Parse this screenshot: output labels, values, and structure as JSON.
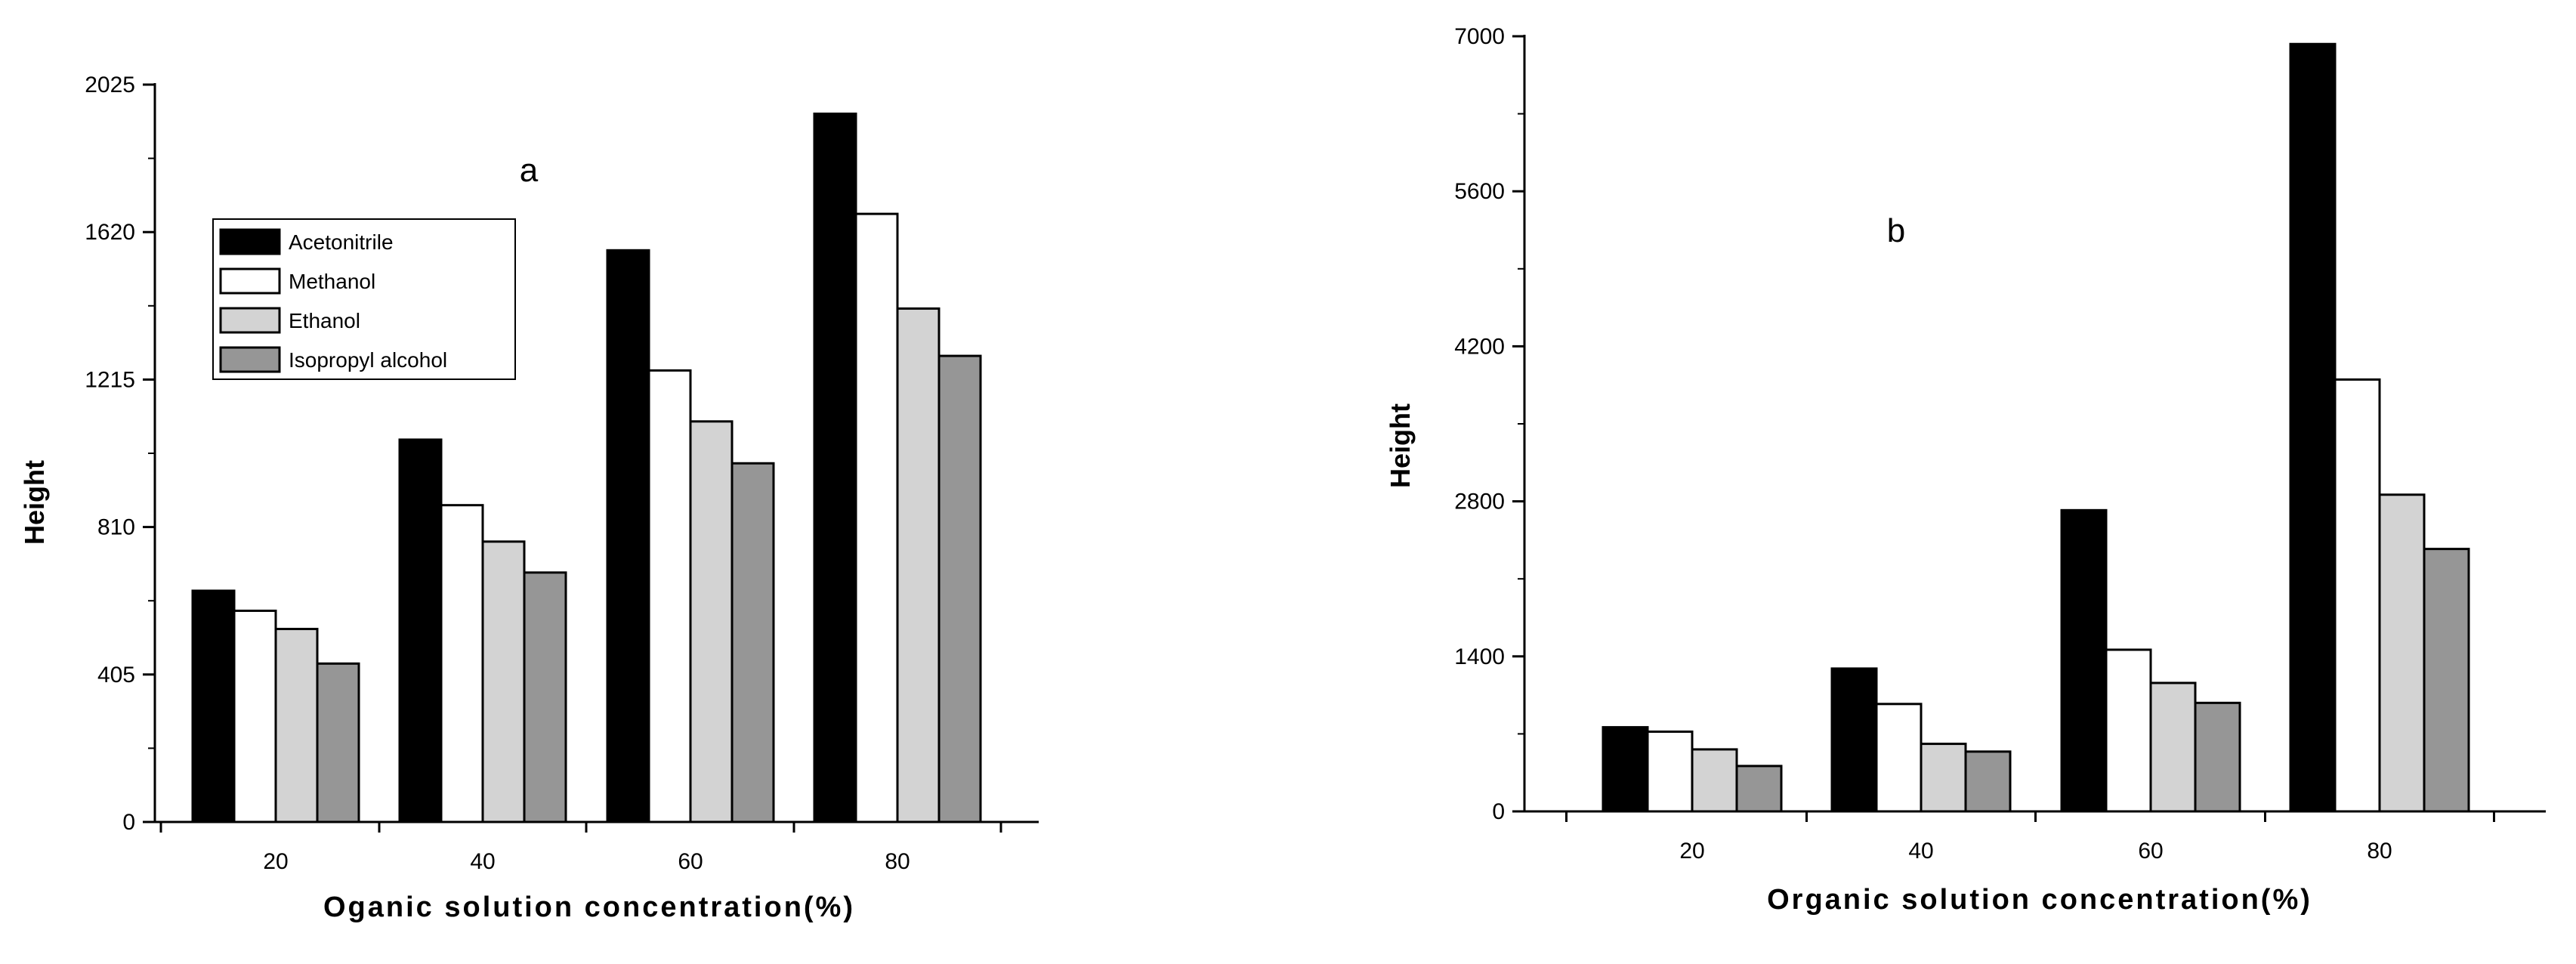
{
  "chart_data": [
    {
      "type": "bar",
      "panel_label": "a",
      "categories": [
        "20",
        "40",
        "60",
        "80"
      ],
      "series": [
        {
          "name": "Acetonitrile",
          "values": [
            635,
            1050,
            1570,
            1945
          ]
        },
        {
          "name": "Methanol",
          "values": [
            580,
            870,
            1240,
            1670
          ]
        },
        {
          "name": "Ethanol",
          "values": [
            530,
            770,
            1100,
            1410
          ]
        },
        {
          "name": "Isopropyl alcohol",
          "values": [
            435,
            685,
            985,
            1280
          ]
        }
      ],
      "xlabel": "Oganic solution concentration(%)",
      "ylabel": "Height",
      "ylim": [
        0,
        2025
      ],
      "yticks": [
        "0",
        "405",
        "810",
        "1215",
        "1620",
        "2025"
      ],
      "legend_position": "upper-left"
    },
    {
      "type": "bar",
      "panel_label": "b",
      "categories": [
        "20",
        "40",
        "60",
        "80"
      ],
      "series": [
        {
          "name": "Acetonitrile",
          "values": [
            760,
            1290,
            2720,
            6930
          ]
        },
        {
          "name": "Methanol",
          "values": [
            720,
            970,
            1460,
            3900
          ]
        },
        {
          "name": "Ethanol",
          "values": [
            560,
            610,
            1160,
            2860
          ]
        },
        {
          "name": "Isopropyl alcohol",
          "values": [
            410,
            540,
            980,
            2370
          ]
        }
      ],
      "xlabel": "Organic solution concentration(%)",
      "ylabel": "Height",
      "ylim": [
        0,
        7000
      ],
      "yticks": [
        "0",
        "1400",
        "2800",
        "4200",
        "5600",
        "7000"
      ]
    }
  ],
  "colors": {
    "Acetonitrile": "#000000",
    "Methanol": "#ffffff",
    "Ethanol": "#d3d3d3",
    "Isopropyl alcohol": "#969696"
  }
}
